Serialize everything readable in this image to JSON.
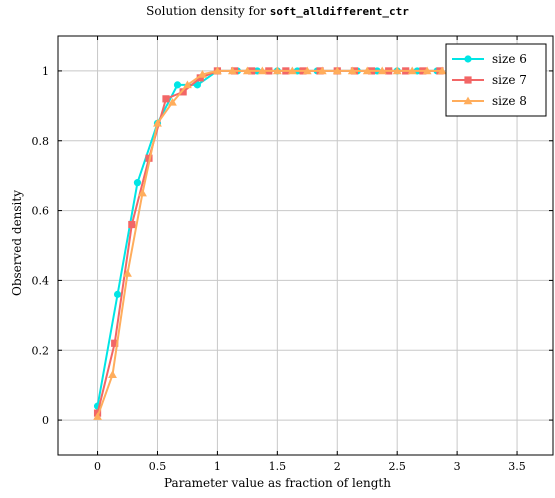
{
  "chart_data": {
    "type": "line",
    "title_prefix": "Solution density for ",
    "title_code": "soft_alldifferent_ctr",
    "xlabel": "Parameter value as fraction of length",
    "ylabel": "Observed density",
    "xlim": [
      -0.33,
      3.8
    ],
    "ylim": [
      -0.1,
      1.1
    ],
    "xticks": [
      0,
      0.5,
      1,
      1.5,
      2,
      2.5,
      3,
      3.5
    ],
    "xtick_labels": [
      "0",
      "0.5",
      "1",
      "1.5",
      "2",
      "2.5",
      "3",
      "3.5"
    ],
    "yticks": [
      0,
      0.2,
      0.4,
      0.6,
      0.8,
      1
    ],
    "ytick_labels": [
      "0",
      "0.2",
      "0.4",
      "0.6",
      "0.8",
      "1"
    ],
    "grid": true,
    "legend_position": "top-right",
    "series": [
      {
        "name": "size 6",
        "color": "#00e5e5",
        "marker": "circle",
        "x": [
          0,
          0.167,
          0.333,
          0.5,
          0.667,
          0.833,
          1,
          1.167,
          1.333,
          1.5,
          1.667,
          1.833,
          2,
          2.167,
          2.333,
          2.5,
          2.667,
          2.833
        ],
        "y": [
          0.04,
          0.36,
          0.68,
          0.85,
          0.96,
          0.96,
          1,
          1,
          1,
          1,
          1,
          1,
          1,
          1,
          1,
          1,
          1,
          1
        ]
      },
      {
        "name": "size 7",
        "color": "#f26666",
        "marker": "square",
        "x": [
          0,
          0.143,
          0.286,
          0.429,
          0.571,
          0.714,
          0.857,
          1,
          1.143,
          1.286,
          1.429,
          1.571,
          1.714,
          1.857,
          2,
          2.143,
          2.286,
          2.429,
          2.571,
          2.714,
          2.857
        ],
        "y": [
          0.02,
          0.22,
          0.56,
          0.75,
          0.92,
          0.94,
          0.98,
          1,
          1,
          1,
          1,
          1,
          1,
          1,
          1,
          1,
          1,
          1,
          1,
          1,
          1
        ]
      },
      {
        "name": "size 8",
        "color": "#ffad5c",
        "marker": "triangle",
        "x": [
          0,
          0.125,
          0.25,
          0.375,
          0.5,
          0.625,
          0.75,
          0.875,
          1,
          1.125,
          1.25,
          1.375,
          1.5,
          1.625,
          1.75,
          1.875,
          2,
          2.125,
          2.25,
          2.375,
          2.5,
          2.625,
          2.75,
          2.875
        ],
        "y": [
          0.01,
          0.13,
          0.42,
          0.65,
          0.85,
          0.91,
          0.96,
          0.99,
          1,
          1,
          1,
          1,
          1,
          1,
          1,
          1,
          1,
          1,
          1,
          1,
          1,
          1,
          1,
          1
        ]
      }
    ]
  }
}
